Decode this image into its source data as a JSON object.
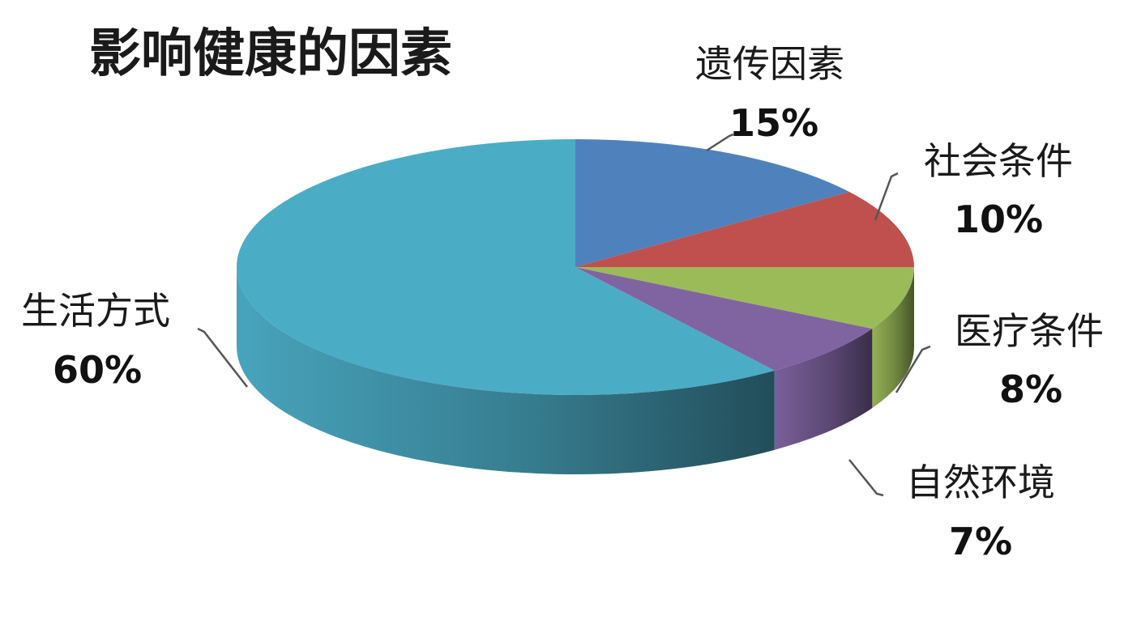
{
  "chart_data": {
    "type": "pie",
    "title": "影响健康的因素",
    "three_d": true,
    "slices": [
      {
        "label": "遗传因素",
        "value": 15,
        "value_label": "15%",
        "color": "#4F81BD"
      },
      {
        "label": "社会条件",
        "value": 10,
        "value_label": "10%",
        "color": "#C0504D"
      },
      {
        "label": "医疗条件",
        "value": 8,
        "value_label": "8%",
        "color": "#9BBB59"
      },
      {
        "label": "自然环境",
        "value": 7,
        "value_label": "7%",
        "color": "#8064A2"
      },
      {
        "label": "生活方式",
        "value": 60,
        "value_label": "60%",
        "color": "#4BACC6"
      }
    ]
  }
}
